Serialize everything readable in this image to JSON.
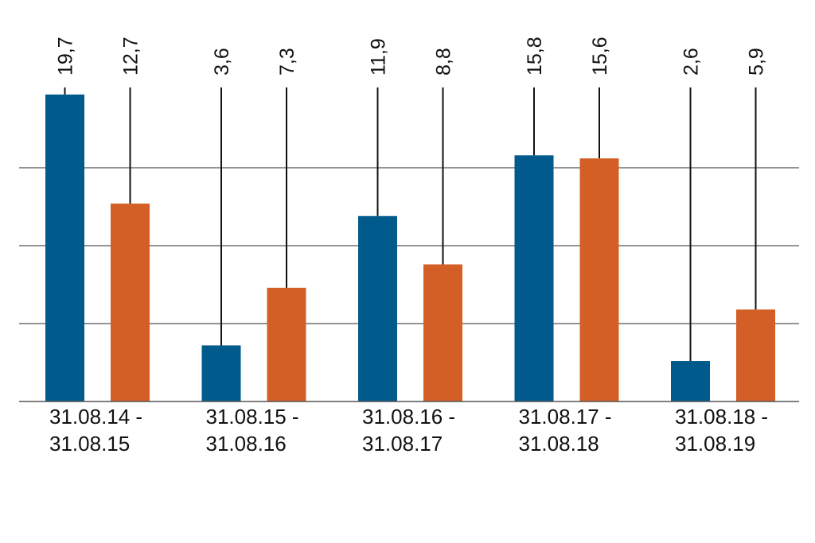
{
  "chart_data": {
    "type": "bar",
    "categories": [
      [
        "31.08.14 -",
        "31.08.15"
      ],
      [
        "31.08.15 -",
        "31.08.16"
      ],
      [
        "31.08.16 -",
        "31.08.17"
      ],
      [
        "31.08.17 -",
        "31.08.18"
      ],
      [
        "31.08.18 -",
        "31.08.19"
      ]
    ],
    "series": [
      {
        "values": [
          19.7,
          3.6,
          11.9,
          15.8,
          2.6
        ],
        "labels": [
          "19,7",
          "3,6",
          "11,9",
          "15,8",
          "2,6"
        ],
        "color": "#005a8c"
      },
      {
        "values": [
          12.7,
          7.3,
          8.8,
          15.6,
          5.9
        ],
        "labels": [
          "12,7",
          "7,3",
          "8,8",
          "15,6",
          "5,9"
        ],
        "color": "#d35f27"
      }
    ],
    "ylim": [
      0,
      20
    ],
    "grid": true,
    "colors": {
      "gridline": "#555555",
      "leader": "#111111",
      "text": "#111111"
    }
  }
}
